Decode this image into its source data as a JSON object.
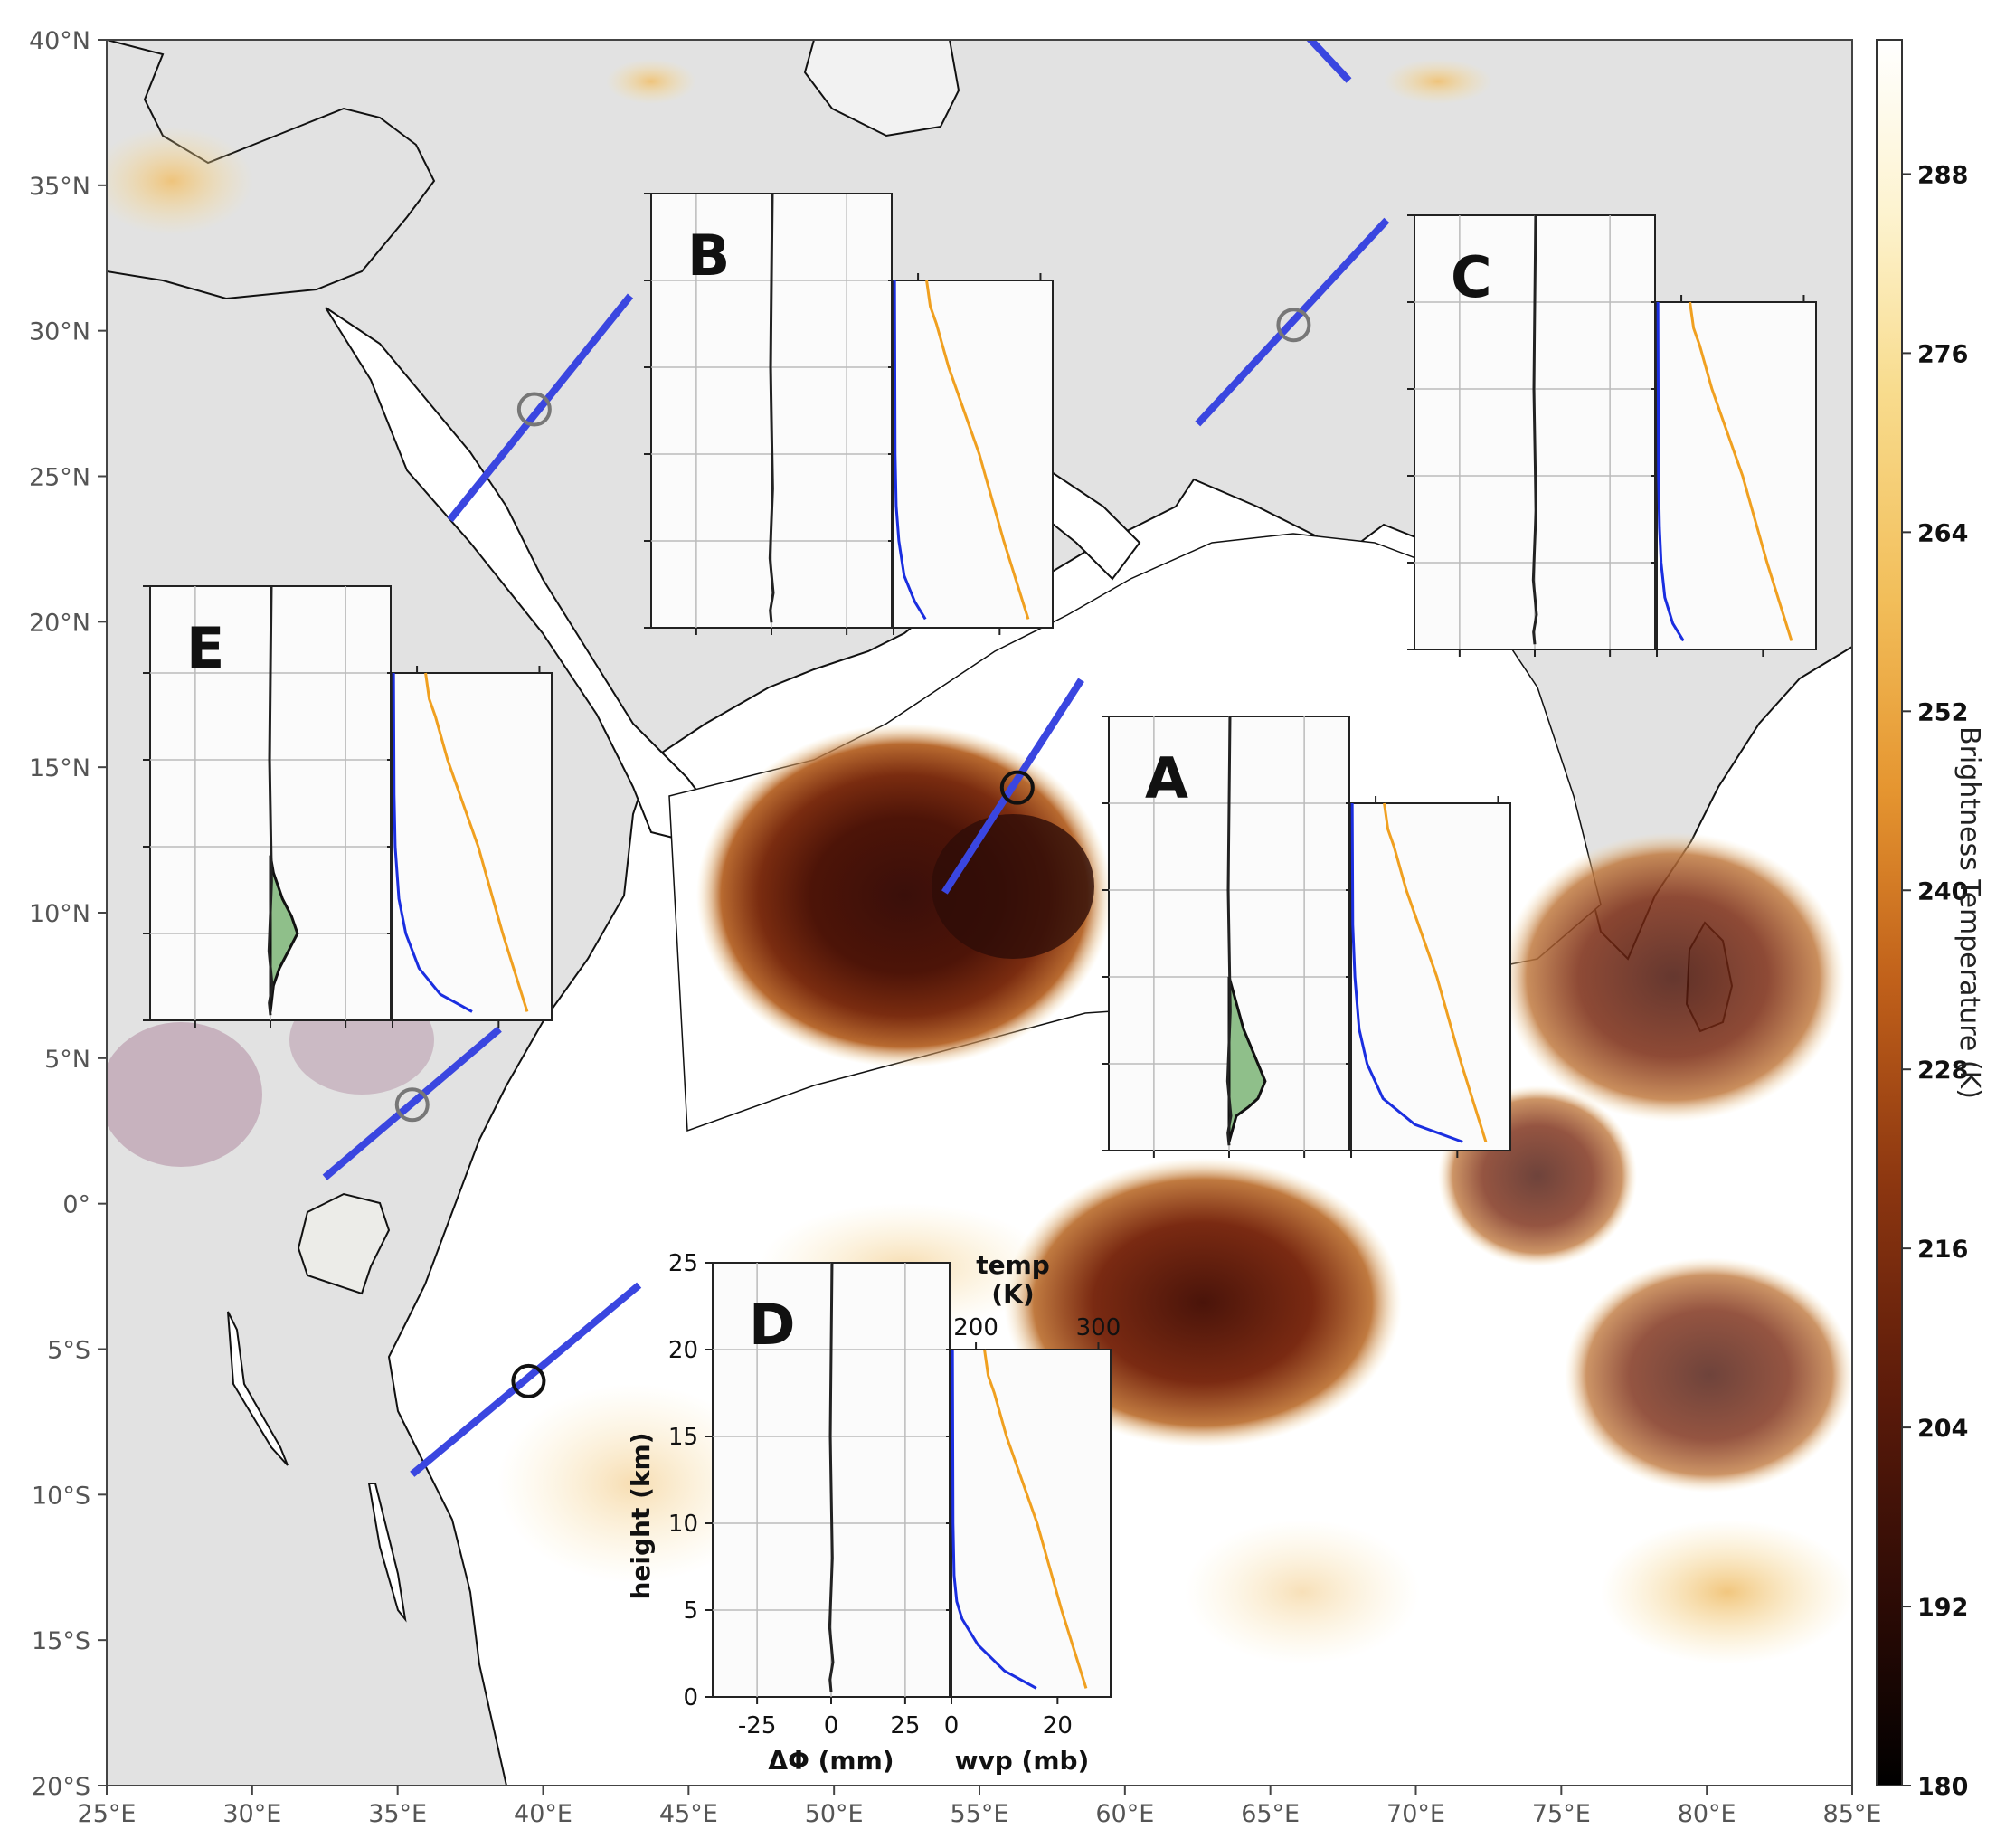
{
  "map": {
    "lon_range": [
      25,
      85
    ],
    "lat_range": [
      -20,
      40
    ],
    "lon_ticks": [
      {
        "v": 25,
        "label": "25°E"
      },
      {
        "v": 30,
        "label": "30°E"
      },
      {
        "v": 35,
        "label": "35°E"
      },
      {
        "v": 40,
        "label": "40°E"
      },
      {
        "v": 45,
        "label": "45°E"
      },
      {
        "v": 50,
        "label": "50°E"
      },
      {
        "v": 55,
        "label": "55°E"
      },
      {
        "v": 60,
        "label": "60°E"
      },
      {
        "v": 65,
        "label": "65°E"
      },
      {
        "v": 70,
        "label": "70°E"
      },
      {
        "v": 75,
        "label": "75°E"
      },
      {
        "v": 80,
        "label": "80°E"
      },
      {
        "v": 85,
        "label": "85°E"
      }
    ],
    "lat_ticks": [
      {
        "v": 40,
        "label": "40°N"
      },
      {
        "v": 35,
        "label": "35°N"
      },
      {
        "v": 30,
        "label": "30°N"
      },
      {
        "v": 25,
        "label": "25°N"
      },
      {
        "v": 20,
        "label": "20°N"
      },
      {
        "v": 15,
        "label": "15°N"
      },
      {
        "v": 10,
        "label": "10°N"
      },
      {
        "v": 5,
        "label": "5°N"
      },
      {
        "v": 0,
        "label": "0°"
      },
      {
        "v": -5,
        "label": "5°S"
      },
      {
        "v": -10,
        "label": "10°S"
      },
      {
        "v": -15,
        "label": "15°S"
      },
      {
        "v": -20,
        "label": "20°S"
      }
    ],
    "land_color": "#e3e3e3",
    "ocean_color": "#ffffff",
    "track_color": "#3a46e0"
  },
  "colorbar": {
    "label": "Brightness Temperature (K)",
    "range": [
      180,
      297
    ],
    "ticks": [
      288,
      276,
      264,
      252,
      240,
      228,
      216,
      204,
      192,
      180
    ]
  },
  "tracks": [
    {
      "label": "A",
      "lon_from": 53.8,
      "lat_from": 10.7,
      "lon_to": 58.5,
      "lat_to": 18.0,
      "circle_lon": 56.3,
      "circle_lat": 14.3
    },
    {
      "label": "B",
      "lon_from": 36.8,
      "lat_from": 23.5,
      "lon_to": 43.0,
      "lat_to": 31.2,
      "circle_lon": 39.7,
      "circle_lat": 27.3
    },
    {
      "label": "C",
      "lon_from": 62.5,
      "lat_from": 26.8,
      "lon_to": 69.0,
      "lat_to": 33.8,
      "circle_lon": 65.8,
      "circle_lat": 30.2
    },
    {
      "label": "D",
      "lon_from": 35.5,
      "lat_from": -9.3,
      "lon_to": 43.3,
      "lat_to": -2.8,
      "circle_lon": 39.5,
      "circle_lat": -6.1
    },
    {
      "label": "E",
      "lon_from": 32.5,
      "lat_from": 0.9,
      "lon_to": 38.5,
      "lat_to": 6.0,
      "circle_lon": 35.5,
      "circle_lat": 3.4
    },
    {
      "label": "",
      "lon_from": 66.2,
      "lat_from": 40.2,
      "lon_to": 67.7,
      "lat_to": 38.6
    }
  ],
  "insets": [
    {
      "label": "A",
      "dphi_profile": [
        [
          0,
          2
        ],
        [
          0,
          5
        ],
        [
          0,
          8
        ],
        [
          0,
          10
        ],
        [
          0,
          15
        ],
        [
          0,
          20
        ],
        [
          1,
          25
        ]
      ],
      "dphi_fill": true,
      "dphi_bulge": [
        [
          0.3,
          2
        ],
        [
          0.8,
          2.5
        ],
        [
          1.2,
          3
        ],
        [
          1.5,
          4
        ],
        [
          1.2,
          5
        ],
        [
          0.9,
          6
        ],
        [
          0.6,
          7
        ],
        [
          0.2,
          9
        ],
        [
          0,
          10
        ]
      ],
      "temp": [
        [
          290,
          0.5
        ],
        [
          270,
          5
        ],
        [
          250,
          10
        ],
        [
          225,
          15
        ],
        [
          215,
          17.5
        ],
        [
          210,
          18.5
        ],
        [
          207,
          20
        ]
      ],
      "wvp": [
        [
          21,
          0.5
        ],
        [
          12,
          1.5
        ],
        [
          6,
          3
        ],
        [
          3,
          5
        ],
        [
          1.5,
          7
        ],
        [
          0.7,
          10
        ],
        [
          0.3,
          13
        ],
        [
          0.2,
          20
        ]
      ]
    },
    {
      "label": "B",
      "dphi_fill": false,
      "temp": [
        [
          290,
          0.5
        ],
        [
          270,
          5
        ],
        [
          250,
          10
        ],
        [
          225,
          15
        ],
        [
          215,
          17.5
        ],
        [
          210,
          18.5
        ],
        [
          207,
          20
        ]
      ],
      "wvp": [
        [
          6,
          0.5
        ],
        [
          4,
          1.5
        ],
        [
          2,
          3
        ],
        [
          1,
          5
        ],
        [
          0.5,
          7
        ],
        [
          0.3,
          10
        ],
        [
          0.2,
          20
        ]
      ]
    },
    {
      "label": "C",
      "dphi_fill": false,
      "temp": [
        [
          290,
          0.5
        ],
        [
          270,
          5
        ],
        [
          250,
          10
        ],
        [
          225,
          15
        ],
        [
          215,
          17.5
        ],
        [
          210,
          18.5
        ],
        [
          207,
          20
        ]
      ],
      "wvp": [
        [
          5,
          0.5
        ],
        [
          3,
          1.5
        ],
        [
          1.5,
          3
        ],
        [
          0.8,
          5
        ],
        [
          0.5,
          7
        ],
        [
          0.3,
          10
        ],
        [
          0.2,
          20
        ]
      ]
    },
    {
      "label": "D",
      "dphi_fill": false,
      "temp": [
        [
          290,
          0.5
        ],
        [
          270,
          5
        ],
        [
          250,
          10
        ],
        [
          225,
          15
        ],
        [
          215,
          17.5
        ],
        [
          210,
          18.5
        ],
        [
          207,
          20
        ]
      ],
      "wvp": [
        [
          16,
          0.5
        ],
        [
          10,
          1.5
        ],
        [
          5,
          3
        ],
        [
          2,
          4.5
        ],
        [
          1,
          5.5
        ],
        [
          0.5,
          7
        ],
        [
          0.3,
          10
        ],
        [
          0.2,
          20
        ]
      ]
    },
    {
      "label": "E",
      "dphi_fill": true,
      "dphi_bulge": [
        [
          0.5,
          2
        ],
        [
          1.5,
          3
        ],
        [
          3,
          4
        ],
        [
          4.5,
          5
        ],
        [
          3.5,
          6
        ],
        [
          2,
          7
        ],
        [
          0.5,
          8.5
        ],
        [
          0,
          9.5
        ]
      ],
      "temp": [
        [
          290,
          0.5
        ],
        [
          270,
          5
        ],
        [
          250,
          10
        ],
        [
          225,
          15
        ],
        [
          215,
          17.5
        ],
        [
          210,
          18.5
        ],
        [
          207,
          20
        ]
      ],
      "wvp": [
        [
          15,
          0.5
        ],
        [
          9,
          1.5
        ],
        [
          5,
          3
        ],
        [
          2.5,
          5
        ],
        [
          1.2,
          7
        ],
        [
          0.5,
          10
        ],
        [
          0.3,
          13
        ],
        [
          0.2,
          20
        ]
      ]
    }
  ],
  "inset_axes": {
    "height_label": "height (km)",
    "height_ticks": [
      0,
      5,
      10,
      15,
      20,
      25
    ],
    "dphi_label": "ΔΦ (mm)",
    "dphi_ticks": [
      -25,
      0,
      25
    ],
    "wvp_label": "wvp (mb)",
    "wvp_ticks": [
      0,
      20
    ],
    "temp_label_line1": "temp",
    "temp_label_line2": "(K)",
    "temp_ticks": [
      200,
      300
    ],
    "temp_color": "#f0a020",
    "wvp_color": "#1a2ee0",
    "fill_color": "#8fbf8a"
  }
}
